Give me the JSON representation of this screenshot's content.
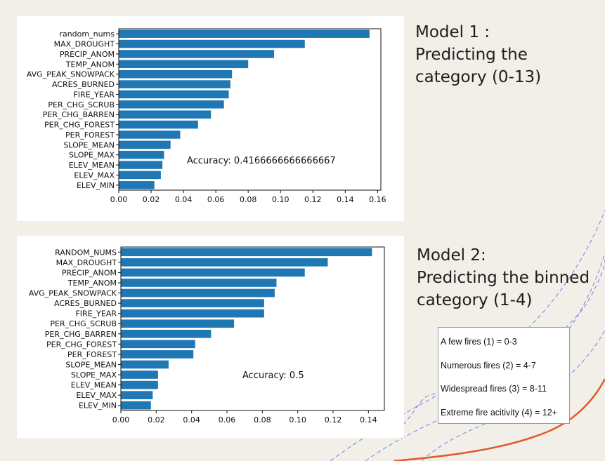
{
  "headings": {
    "model1": "Model 1 :\nPredicting the\ncategory (0-13)",
    "model2": "Model 2:\nPredicting the binned\ncategory (1-4)"
  },
  "legend": {
    "items": [
      "A few fires (1) = 0-3",
      "Numerous fires (2) = 4-7",
      "Widespread fires (3) = 8-11",
      "Extreme fire acitivity (4) = 12+"
    ]
  },
  "colors": {
    "bar": "#1f77b4",
    "accent_line": "#e05a2b",
    "dashed_lines": "#7b7fe0"
  },
  "chart_data": [
    {
      "type": "bar",
      "orientation": "horizontal",
      "categories": [
        "random_nums",
        "MAX_DROUGHT",
        "PRECIP_ANOM",
        "TEMP_ANOM",
        "AVG_PEAK_SNOWPACK",
        "ACRES_BURNED",
        "FIRE_YEAR",
        "PER_CHG_SCRUB",
        "PER_CHG_BARREN",
        "PER_CHG_FOREST",
        "PER_FOREST",
        "SLOPE_MEAN",
        "SLOPE_MAX",
        "ELEV_MEAN",
        "ELEV_MAX",
        "ELEV_MIN"
      ],
      "values": [
        0.155,
        0.115,
        0.096,
        0.08,
        0.07,
        0.069,
        0.068,
        0.065,
        0.057,
        0.049,
        0.038,
        0.032,
        0.028,
        0.027,
        0.026,
        0.022
      ],
      "xlim": [
        0,
        0.162
      ],
      "xticks": [
        "0.00",
        "0.02",
        "0.04",
        "0.06",
        "0.08",
        "0.10",
        "0.12",
        "0.14",
        "0.16"
      ],
      "annotation": "Accuracy: 0.4166666666666667",
      "title": "",
      "xlabel": "",
      "ylabel": ""
    },
    {
      "type": "bar",
      "orientation": "horizontal",
      "categories": [
        "RANDOM_NUMS",
        "MAX_DROUGHT",
        "PRECIP_ANOM",
        "TEMP_ANOM",
        "AVG_PEAK_SNOWPACK",
        "ACRES_BURNED",
        "FIRE_YEAR",
        "PER_CHG_SCRUB",
        "PER_CHG_BARREN",
        "PER_CHG_FOREST",
        "PER_FOREST",
        "SLOPE_MEAN",
        "SLOPE_MAX",
        "ELEV_MEAN",
        "ELEV_MAX",
        "ELEV_MIN"
      ],
      "values": [
        0.142,
        0.117,
        0.104,
        0.088,
        0.087,
        0.081,
        0.081,
        0.064,
        0.051,
        0.042,
        0.041,
        0.027,
        0.021,
        0.021,
        0.018,
        0.017
      ],
      "xlim": [
        0,
        0.149
      ],
      "xticks": [
        "0.00",
        "0.02",
        "0.04",
        "0.06",
        "0.08",
        "0.10",
        "0.12",
        "0.14"
      ],
      "annotation": "Accuracy: 0.5",
      "title": "",
      "xlabel": "",
      "ylabel": ""
    }
  ]
}
